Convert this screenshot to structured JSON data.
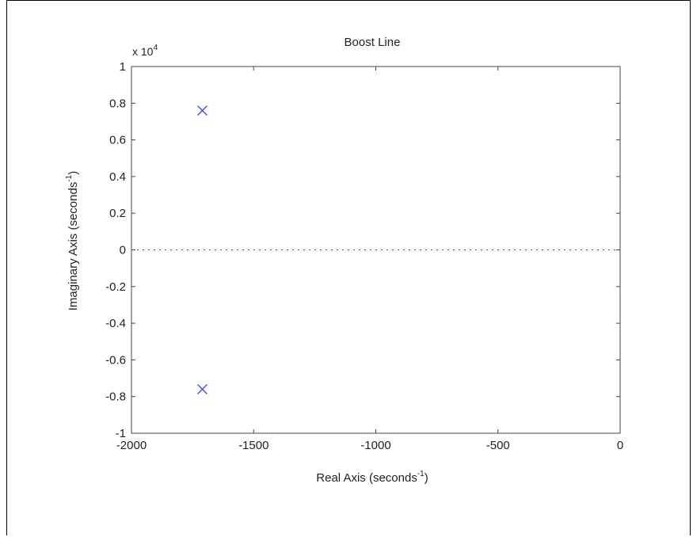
{
  "chart_data": {
    "type": "scatter",
    "title": "Boost Line",
    "xlabel_main": "Real Axis (seconds",
    "xlabel_sup": "-1",
    "xlabel_end": ")",
    "ylabel_main": "Imaginary Axis (seconds",
    "ylabel_sup": "-1",
    "ylabel_end": ")",
    "y_multiplier_base": "x 10",
    "y_multiplier_exp": "4",
    "xlim": [
      -2000,
      0
    ],
    "ylim": [
      -1,
      1
    ],
    "x_ticks": [
      -2000,
      -1500,
      -1000,
      -500,
      0
    ],
    "x_tick_labels": [
      "-2000",
      "-1500",
      "-1000",
      "-500",
      "0"
    ],
    "y_ticks": [
      -1,
      -0.8,
      -0.6,
      -0.4,
      -0.2,
      0,
      0.2,
      0.4,
      0.6,
      0.8,
      1
    ],
    "y_tick_labels": [
      "-1",
      "-0.8",
      "-0.6",
      "-0.4",
      "-0.2",
      "0",
      "0.2",
      "0.4",
      "0.6",
      "0.8",
      "1"
    ],
    "grid": false,
    "zero_line": "dotted",
    "marker": "x",
    "marker_color": "#3b3bff",
    "points": [
      {
        "x": -1710,
        "y": 0.76
      },
      {
        "x": -1710,
        "y": -0.76
      }
    ]
  }
}
